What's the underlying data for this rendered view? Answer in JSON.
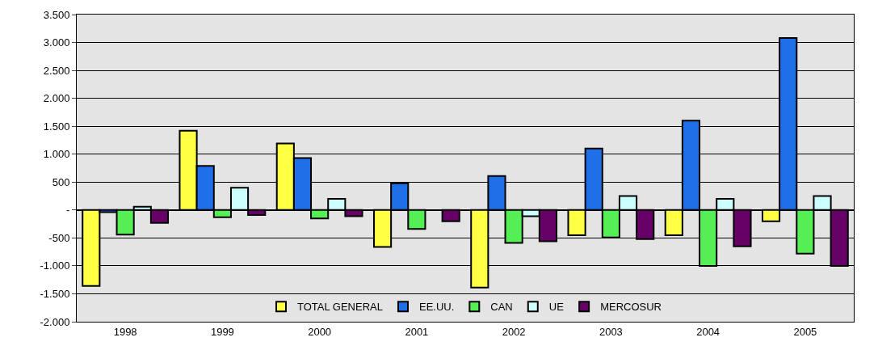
{
  "chart_data": {
    "type": "bar",
    "categories": [
      "1998",
      "1999",
      "2000",
      "2001",
      "2002",
      "2003",
      "2004",
      "2005"
    ],
    "series": [
      {
        "name": "TOTAL GENERAL",
        "color": "#ffff44",
        "values": [
          -1360,
          1420,
          1190,
          -660,
          -1390,
          -450,
          -450,
          -200
        ]
      },
      {
        "name": "EE.UU.",
        "color": "#1f6fe8",
        "values": [
          -40,
          790,
          930,
          480,
          610,
          1100,
          1600,
          3080
        ]
      },
      {
        "name": "CAN",
        "color": "#55ee55",
        "values": [
          -440,
          -130,
          -150,
          -340,
          -590,
          -490,
          -1000,
          -780
        ]
      },
      {
        "name": "UE",
        "color": "#ccffff",
        "values": [
          60,
          400,
          200,
          null,
          -110,
          250,
          200,
          250
        ]
      },
      {
        "name": "MERCOSUR",
        "color": "#660066",
        "values": [
          -230,
          -90,
          -110,
          -200,
          -560,
          -520,
          -650,
          -1000
        ]
      }
    ],
    "ylim": [
      -2000,
      3500
    ],
    "yticks": [
      {
        "value": -2000,
        "label": "-2.000"
      },
      {
        "value": -1500,
        "label": "-1.500"
      },
      {
        "value": -1000,
        "label": "-1.000"
      },
      {
        "value": -500,
        "label": "-500"
      },
      {
        "value": 0,
        "label": "-"
      },
      {
        "value": 500,
        "label": "500"
      },
      {
        "value": 1000,
        "label": "1.000"
      },
      {
        "value": 1500,
        "label": "1.500"
      },
      {
        "value": 2000,
        "label": "2.000"
      },
      {
        "value": 2500,
        "label": "2.500"
      },
      {
        "value": 3000,
        "label": "3.000"
      },
      {
        "value": 3500,
        "label": "3.500"
      }
    ],
    "grid": "y",
    "legend": "bottom"
  }
}
